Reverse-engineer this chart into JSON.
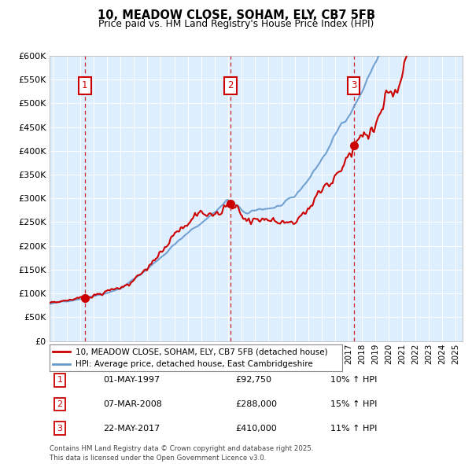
{
  "title1": "10, MEADOW CLOSE, SOHAM, ELY, CB7 5FB",
  "title2": "Price paid vs. HM Land Registry's House Price Index (HPI)",
  "legend_line1": "10, MEADOW CLOSE, SOHAM, ELY, CB7 5FB (detached house)",
  "legend_line2": "HPI: Average price, detached house, East Cambridgeshire",
  "sale_color": "#cc0000",
  "hpi_color": "#6699cc",
  "background_color": "#ddeeff",
  "sales": [
    {
      "label": "1",
      "date_num": 1997.33,
      "price": 92750
    },
    {
      "label": "2",
      "date_num": 2008.18,
      "price": 288000
    },
    {
      "label": "3",
      "date_num": 2017.38,
      "price": 410000
    }
  ],
  "sale_annotations": [
    {
      "num": "1",
      "date": "01-MAY-1997",
      "price": "£92,750",
      "hpi": "10% ↑ HPI"
    },
    {
      "num": "2",
      "date": "07-MAR-2008",
      "price": "£288,000",
      "hpi": "15% ↑ HPI"
    },
    {
      "num": "3",
      "date": "22-MAY-2017",
      "price": "£410,000",
      "hpi": "11% ↑ HPI"
    }
  ],
  "footer": "Contains HM Land Registry data © Crown copyright and database right 2025.\nThis data is licensed under the Open Government Licence v3.0.",
  "ylim": [
    0,
    600000
  ],
  "xlim": [
    1994.7,
    2025.5
  ],
  "yticks": [
    0,
    50000,
    100000,
    150000,
    200000,
    250000,
    300000,
    350000,
    400000,
    450000,
    500000,
    550000,
    600000
  ]
}
